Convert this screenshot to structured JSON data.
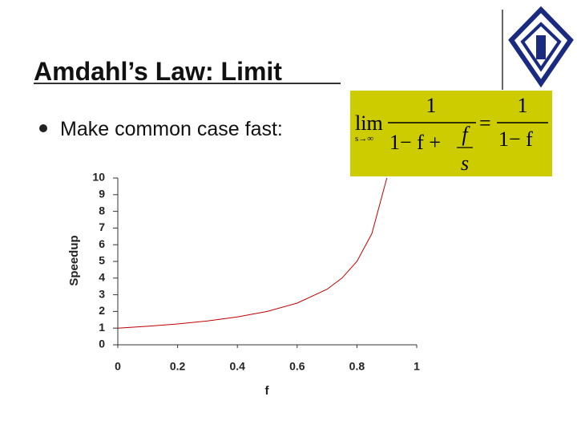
{
  "slide": {
    "title": "Amdahl’s Law: Limit",
    "bullet": "Make common case fast:"
  },
  "formula": {
    "lim": "lim",
    "sub": "s→∞",
    "num_left": "1",
    "den_left": "1− f +",
    "frac_num": "f",
    "frac_den": "s",
    "equals": "=",
    "num_right": "1",
    "den_right": "1− f"
  },
  "chart_data": {
    "type": "line",
    "x": [
      0,
      0.1,
      0.2,
      0.3,
      0.4,
      0.5,
      0.6,
      0.7,
      0.75,
      0.8,
      0.85,
      0.9
    ],
    "values": [
      1,
      1.11,
      1.25,
      1.43,
      1.67,
      2,
      2.5,
      3.33,
      4,
      5,
      6.67,
      10
    ],
    "color": "#c00000",
    "xlabel": "f",
    "ylabel": "Speedup",
    "xlim": [
      0,
      1
    ],
    "ylim": [
      0,
      10
    ],
    "xticks": [
      0,
      0.2,
      0.4,
      0.6,
      0.8,
      1
    ],
    "yticks": [
      0,
      1,
      2,
      3,
      4,
      5,
      6,
      7,
      8,
      9,
      10
    ]
  }
}
